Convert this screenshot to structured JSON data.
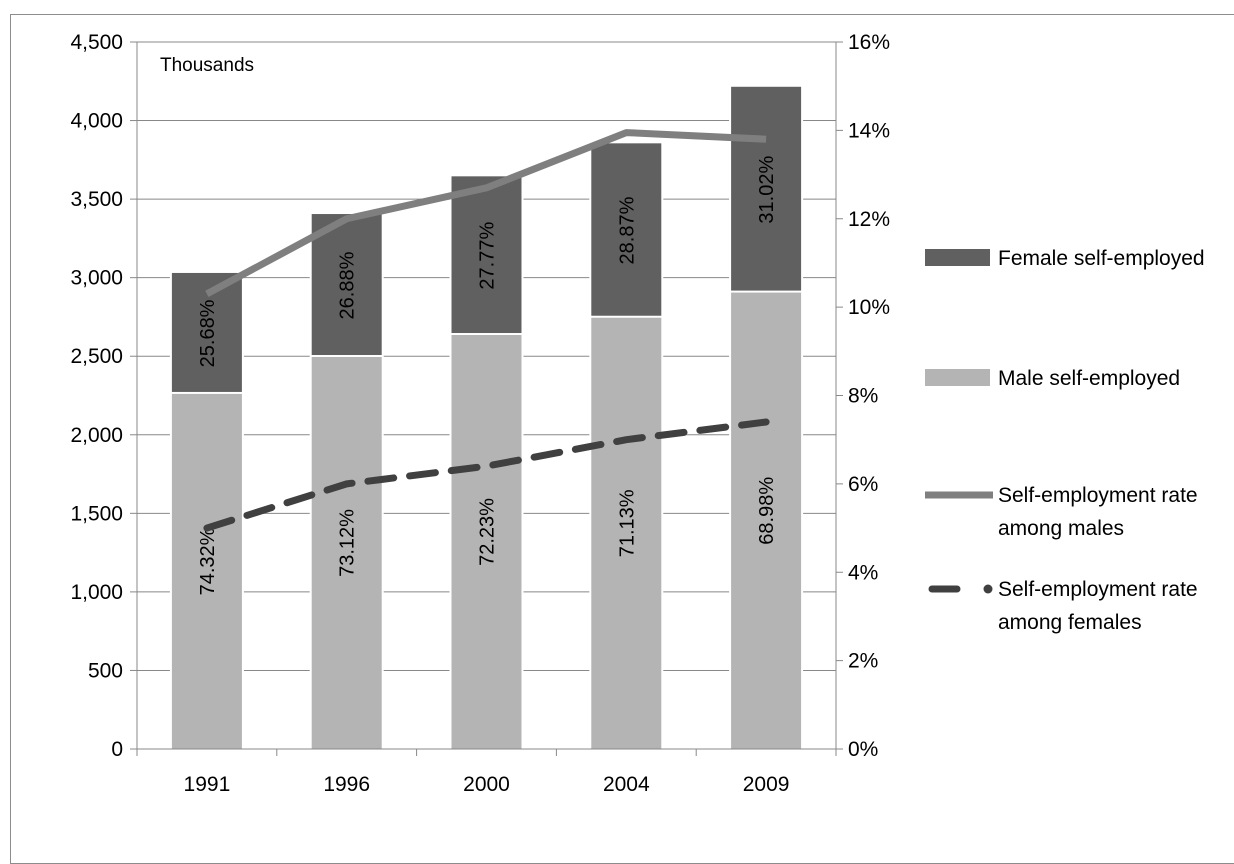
{
  "chart_data": {
    "type": "bar",
    "stacked": true,
    "unit_label": "Thousands",
    "categories": [
      "1991",
      "1996",
      "2000",
      "2004",
      "2009"
    ],
    "left_axis": {
      "ylim": [
        0,
        4500
      ],
      "ticks": [
        0,
        500,
        1000,
        1500,
        2000,
        2500,
        3000,
        3500,
        4000,
        4500
      ],
      "tick_labels": [
        "0",
        "500",
        "1,000",
        "1,500",
        "2,000",
        "2,500",
        "3,000",
        "3,500",
        "4,000",
        "4,500"
      ]
    },
    "right_axis": {
      "ylim": [
        0,
        16
      ],
      "ticks": [
        0,
        2,
        4,
        6,
        8,
        10,
        12,
        14,
        16
      ],
      "tick_labels": [
        "0%",
        "2%",
        "4%",
        "6%",
        "8%",
        "10%",
        "12%",
        "14%",
        "16%"
      ]
    },
    "series": [
      {
        "name": "Male self-employed",
        "kind": "bar",
        "axis": "left",
        "color": "#b4b4b4",
        "values": [
          2260,
          2495,
          2635,
          2745,
          2905
        ],
        "labels": [
          "74.32%",
          "73.12%",
          "72.23%",
          "71.13%",
          "68.98%"
        ]
      },
      {
        "name": "Female self-employed",
        "kind": "bar",
        "axis": "left",
        "color": "#606060",
        "values": [
          770,
          910,
          1010,
          1110,
          1310
        ],
        "labels": [
          "25.68%",
          "26.88%",
          "27.77%",
          "28.87%",
          "31.02%"
        ]
      },
      {
        "name": "Self-employment rate among males",
        "legend_lines": [
          "Self-employment rate",
          "among males"
        ],
        "kind": "line",
        "axis": "right",
        "color": "#7f7f7f",
        "dash": "solid",
        "values": [
          10.3,
          12.0,
          12.7,
          13.95,
          13.8
        ]
      },
      {
        "name": "Self-employment rate among females",
        "legend_lines": [
          "Self-employment rate",
          "among females"
        ],
        "kind": "line",
        "axis": "right",
        "color": "#404040",
        "dash": "dashed",
        "values": [
          5.0,
          6.0,
          6.4,
          7.0,
          7.4
        ]
      }
    ],
    "grid": true,
    "legend_position": "right"
  }
}
